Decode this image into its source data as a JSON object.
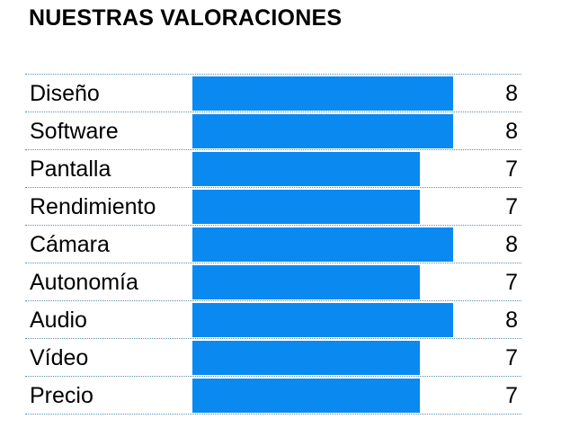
{
  "header": {
    "title": "NUESTRAS VALORACIONES"
  },
  "colors": {
    "bar": "#0a8af0",
    "divider": "#5b8fb0"
  },
  "chart_data": {
    "type": "bar",
    "orientation": "horizontal",
    "title": "NUESTRAS VALORACIONES",
    "categories": [
      "Diseño",
      "Software",
      "Pantalla",
      "Rendimiento",
      "Cámara",
      "Autonomía",
      "Audio",
      "Vídeo",
      "Precio"
    ],
    "values": [
      8,
      8,
      7,
      7,
      8,
      7,
      8,
      7,
      7
    ],
    "xlim": [
      0,
      10
    ],
    "grid": false,
    "rows": [
      {
        "label": "Diseño",
        "value": "8"
      },
      {
        "label": "Software",
        "value": "8"
      },
      {
        "label": "Pantalla",
        "value": "7"
      },
      {
        "label": "Rendimiento",
        "value": "7"
      },
      {
        "label": "Cámara",
        "value": "8"
      },
      {
        "label": "Autonomía",
        "value": "7"
      },
      {
        "label": "Audio",
        "value": "8"
      },
      {
        "label": "Vídeo",
        "value": "7"
      },
      {
        "label": "Precio",
        "value": "7"
      }
    ]
  }
}
